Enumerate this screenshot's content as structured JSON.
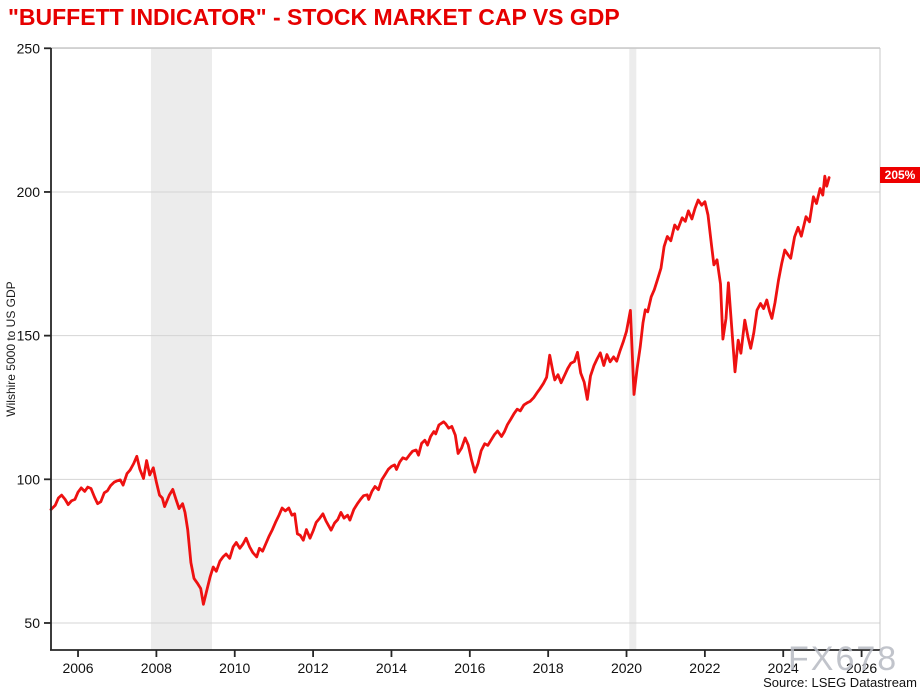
{
  "title": "\"BUFFETT INDICATOR\" - STOCK MARKET CAP VS GDP",
  "current_label": "205%",
  "watermark": "FX678",
  "source": "Source: LSEG Datastream",
  "colors": {
    "title": "#e60000",
    "line": "#ee1111",
    "badge_bg": "#ee0000",
    "badge_text": "#ffffff",
    "recession_band": "#ececec",
    "grid": "#d4d4d4",
    "frame": "#c9c9c9",
    "axis": "#262626",
    "tick_text": "#111111",
    "watermark": "#b7bac3"
  },
  "chart_data": {
    "type": "line",
    "title": "\"BUFFETT INDICATOR\" - STOCK MARKET CAP VS GDP",
    "xlabel": "",
    "ylabel": "Wilshire 5000 to US GDP",
    "x_ticks": [
      2006,
      2008,
      2010,
      2012,
      2014,
      2016,
      2018,
      2020,
      2022,
      2024,
      2026
    ],
    "y_ticks": [
      50,
      100,
      150,
      200,
      250
    ],
    "xlim": [
      2005.31,
      2026.47
    ],
    "ylim": [
      40.6,
      250.1
    ],
    "grid": "horizontal",
    "legend": "none",
    "last_value": 205,
    "recession_bands": [
      [
        2007.86,
        2009.42
      ],
      [
        2020.07,
        2020.25
      ]
    ],
    "series": [
      {
        "name": "Wilshire 5000 to US GDP",
        "color": "#ee1111",
        "points": [
          [
            2005.31,
            89.5
          ],
          [
            2005.42,
            91
          ],
          [
            2005.5,
            93.5
          ],
          [
            2005.58,
            94.5
          ],
          [
            2005.67,
            93
          ],
          [
            2005.75,
            91.2
          ],
          [
            2005.83,
            92.5
          ],
          [
            2005.92,
            93
          ],
          [
            2006.0,
            95.5
          ],
          [
            2006.08,
            97
          ],
          [
            2006.17,
            95.8
          ],
          [
            2006.25,
            97.3
          ],
          [
            2006.33,
            96.8
          ],
          [
            2006.42,
            93.8
          ],
          [
            2006.5,
            91.5
          ],
          [
            2006.58,
            92.2
          ],
          [
            2006.67,
            95.3
          ],
          [
            2006.75,
            96
          ],
          [
            2006.83,
            97.8
          ],
          [
            2006.92,
            99
          ],
          [
            2007.0,
            99.5
          ],
          [
            2007.08,
            99.8
          ],
          [
            2007.15,
            98
          ],
          [
            2007.25,
            102
          ],
          [
            2007.33,
            103.2
          ],
          [
            2007.42,
            105.5
          ],
          [
            2007.5,
            108
          ],
          [
            2007.58,
            103.5
          ],
          [
            2007.67,
            100.3
          ],
          [
            2007.75,
            106.5
          ],
          [
            2007.83,
            101.5
          ],
          [
            2007.92,
            104
          ],
          [
            2008.0,
            99
          ],
          [
            2008.08,
            94.5
          ],
          [
            2008.15,
            93.5
          ],
          [
            2008.21,
            90.5
          ],
          [
            2008.33,
            94.5
          ],
          [
            2008.42,
            96.5
          ],
          [
            2008.5,
            93
          ],
          [
            2008.58,
            89.8
          ],
          [
            2008.67,
            91.5
          ],
          [
            2008.73,
            88.5
          ],
          [
            2008.8,
            82.5
          ],
          [
            2008.88,
            71
          ],
          [
            2008.96,
            65.5
          ],
          [
            2009.04,
            64
          ],
          [
            2009.13,
            62
          ],
          [
            2009.2,
            56.5
          ],
          [
            2009.29,
            61.5
          ],
          [
            2009.37,
            66
          ],
          [
            2009.45,
            69.5
          ],
          [
            2009.53,
            68
          ],
          [
            2009.62,
            71.5
          ],
          [
            2009.7,
            73
          ],
          [
            2009.78,
            74
          ],
          [
            2009.87,
            72.5
          ],
          [
            2009.96,
            76.5
          ],
          [
            2010.04,
            78
          ],
          [
            2010.13,
            76
          ],
          [
            2010.21,
            77.5
          ],
          [
            2010.29,
            79.5
          ],
          [
            2010.38,
            76.5
          ],
          [
            2010.46,
            74.5
          ],
          [
            2010.56,
            73
          ],
          [
            2010.63,
            76
          ],
          [
            2010.71,
            75
          ],
          [
            2010.79,
            77.5
          ],
          [
            2010.87,
            80
          ],
          [
            2010.96,
            82.5
          ],
          [
            2011.04,
            85
          ],
          [
            2011.13,
            87.5
          ],
          [
            2011.21,
            90
          ],
          [
            2011.29,
            89
          ],
          [
            2011.38,
            90
          ],
          [
            2011.46,
            87.5
          ],
          [
            2011.53,
            88
          ],
          [
            2011.6,
            81
          ],
          [
            2011.67,
            80.5
          ],
          [
            2011.75,
            78.8
          ],
          [
            2011.83,
            82.5
          ],
          [
            2011.92,
            79.5
          ],
          [
            2012.0,
            82
          ],
          [
            2012.08,
            85
          ],
          [
            2012.17,
            86.5
          ],
          [
            2012.25,
            88
          ],
          [
            2012.33,
            85.5
          ],
          [
            2012.46,
            82.3
          ],
          [
            2012.55,
            84.8
          ],
          [
            2012.63,
            86
          ],
          [
            2012.71,
            88.5
          ],
          [
            2012.79,
            86.5
          ],
          [
            2012.88,
            87.5
          ],
          [
            2012.94,
            85.8
          ],
          [
            2013.04,
            89.5
          ],
          [
            2013.13,
            91.5
          ],
          [
            2013.21,
            93
          ],
          [
            2013.29,
            94.3
          ],
          [
            2013.38,
            94.6
          ],
          [
            2013.42,
            93
          ],
          [
            2013.5,
            95.8
          ],
          [
            2013.58,
            97.5
          ],
          [
            2013.67,
            96.4
          ],
          [
            2013.75,
            99.8
          ],
          [
            2013.83,
            101.5
          ],
          [
            2013.92,
            103.5
          ],
          [
            2014.0,
            104.5
          ],
          [
            2014.08,
            105
          ],
          [
            2014.13,
            103.4
          ],
          [
            2014.21,
            106
          ],
          [
            2014.29,
            107.5
          ],
          [
            2014.38,
            107
          ],
          [
            2014.46,
            108.5
          ],
          [
            2014.54,
            109.8
          ],
          [
            2014.63,
            110.2
          ],
          [
            2014.69,
            108.4
          ],
          [
            2014.77,
            112.5
          ],
          [
            2014.85,
            113.6
          ],
          [
            2014.92,
            111.9
          ],
          [
            2015.0,
            114.9
          ],
          [
            2015.08,
            116.6
          ],
          [
            2015.13,
            115.8
          ],
          [
            2015.21,
            118.9
          ],
          [
            2015.33,
            120
          ],
          [
            2015.38,
            119.4
          ],
          [
            2015.46,
            117.8
          ],
          [
            2015.54,
            118.4
          ],
          [
            2015.63,
            115.4
          ],
          [
            2015.7,
            109
          ],
          [
            2015.79,
            110.9
          ],
          [
            2015.88,
            114.4
          ],
          [
            2015.96,
            112
          ],
          [
            2016.04,
            107
          ],
          [
            2016.13,
            102.5
          ],
          [
            2016.21,
            105.5
          ],
          [
            2016.29,
            110
          ],
          [
            2016.38,
            112.4
          ],
          [
            2016.46,
            111.8
          ],
          [
            2016.54,
            113.6
          ],
          [
            2016.63,
            115.6
          ],
          [
            2016.71,
            116.8
          ],
          [
            2016.81,
            114.9
          ],
          [
            2016.88,
            116.5
          ],
          [
            2016.96,
            119
          ],
          [
            2017.04,
            120.8
          ],
          [
            2017.13,
            122.9
          ],
          [
            2017.21,
            124.4
          ],
          [
            2017.29,
            123.8
          ],
          [
            2017.38,
            125.9
          ],
          [
            2017.46,
            126.6
          ],
          [
            2017.54,
            127.1
          ],
          [
            2017.63,
            128.4
          ],
          [
            2017.71,
            130
          ],
          [
            2017.79,
            131.5
          ],
          [
            2017.88,
            133.4
          ],
          [
            2017.96,
            135.5
          ],
          [
            2018.04,
            143.2
          ],
          [
            2018.13,
            136.8
          ],
          [
            2018.17,
            134.6
          ],
          [
            2018.25,
            136.4
          ],
          [
            2018.33,
            133.6
          ],
          [
            2018.42,
            136.2
          ],
          [
            2018.5,
            138.6
          ],
          [
            2018.58,
            140.4
          ],
          [
            2018.67,
            141
          ],
          [
            2018.75,
            144.2
          ],
          [
            2018.83,
            137
          ],
          [
            2018.92,
            133.8
          ],
          [
            2019.0,
            127.8
          ],
          [
            2019.08,
            136
          ],
          [
            2019.17,
            139.6
          ],
          [
            2019.25,
            141.9
          ],
          [
            2019.33,
            144
          ],
          [
            2019.42,
            139.6
          ],
          [
            2019.5,
            143.4
          ],
          [
            2019.58,
            140.9
          ],
          [
            2019.67,
            142.6
          ],
          [
            2019.75,
            141.1
          ],
          [
            2019.83,
            144.6
          ],
          [
            2019.92,
            148
          ],
          [
            2020.0,
            151.5
          ],
          [
            2020.1,
            158.8
          ],
          [
            2020.19,
            129.5
          ],
          [
            2020.27,
            138.5
          ],
          [
            2020.35,
            146
          ],
          [
            2020.42,
            154.5
          ],
          [
            2020.48,
            159
          ],
          [
            2020.54,
            158.3
          ],
          [
            2020.63,
            163.5
          ],
          [
            2020.71,
            166
          ],
          [
            2020.79,
            169.5
          ],
          [
            2020.88,
            173.5
          ],
          [
            2020.96,
            181
          ],
          [
            2021.04,
            184.5
          ],
          [
            2021.13,
            183
          ],
          [
            2021.23,
            188.5
          ],
          [
            2021.31,
            187
          ],
          [
            2021.42,
            191
          ],
          [
            2021.5,
            189.8
          ],
          [
            2021.58,
            193.4
          ],
          [
            2021.67,
            190.6
          ],
          [
            2021.75,
            194.4
          ],
          [
            2021.83,
            197.2
          ],
          [
            2021.92,
            195.4
          ],
          [
            2022.0,
            196.6
          ],
          [
            2022.08,
            192
          ],
          [
            2022.17,
            181.5
          ],
          [
            2022.23,
            174.6
          ],
          [
            2022.31,
            176.4
          ],
          [
            2022.4,
            168
          ],
          [
            2022.46,
            148.8
          ],
          [
            2022.54,
            156
          ],
          [
            2022.6,
            168.4
          ],
          [
            2022.69,
            152
          ],
          [
            2022.77,
            137.4
          ],
          [
            2022.85,
            148.4
          ],
          [
            2022.92,
            143.9
          ],
          [
            2023.02,
            155.4
          ],
          [
            2023.1,
            149.5
          ],
          [
            2023.17,
            145.6
          ],
          [
            2023.25,
            151
          ],
          [
            2023.33,
            158.9
          ],
          [
            2023.42,
            161.2
          ],
          [
            2023.5,
            159.4
          ],
          [
            2023.58,
            162.4
          ],
          [
            2023.65,
            158.5
          ],
          [
            2023.71,
            156
          ],
          [
            2023.79,
            161.5
          ],
          [
            2023.88,
            169.3
          ],
          [
            2023.96,
            175.1
          ],
          [
            2024.04,
            179.8
          ],
          [
            2024.13,
            178
          ],
          [
            2024.19,
            176.9
          ],
          [
            2024.29,
            184.4
          ],
          [
            2024.38,
            187.7
          ],
          [
            2024.46,
            184.6
          ],
          [
            2024.58,
            191.4
          ],
          [
            2024.67,
            189.6
          ],
          [
            2024.77,
            198.3
          ],
          [
            2024.85,
            196
          ],
          [
            2024.94,
            201.2
          ],
          [
            2025.01,
            198.9
          ],
          [
            2025.06,
            205.5
          ],
          [
            2025.11,
            202
          ],
          [
            2025.17,
            205
          ]
        ]
      }
    ]
  }
}
